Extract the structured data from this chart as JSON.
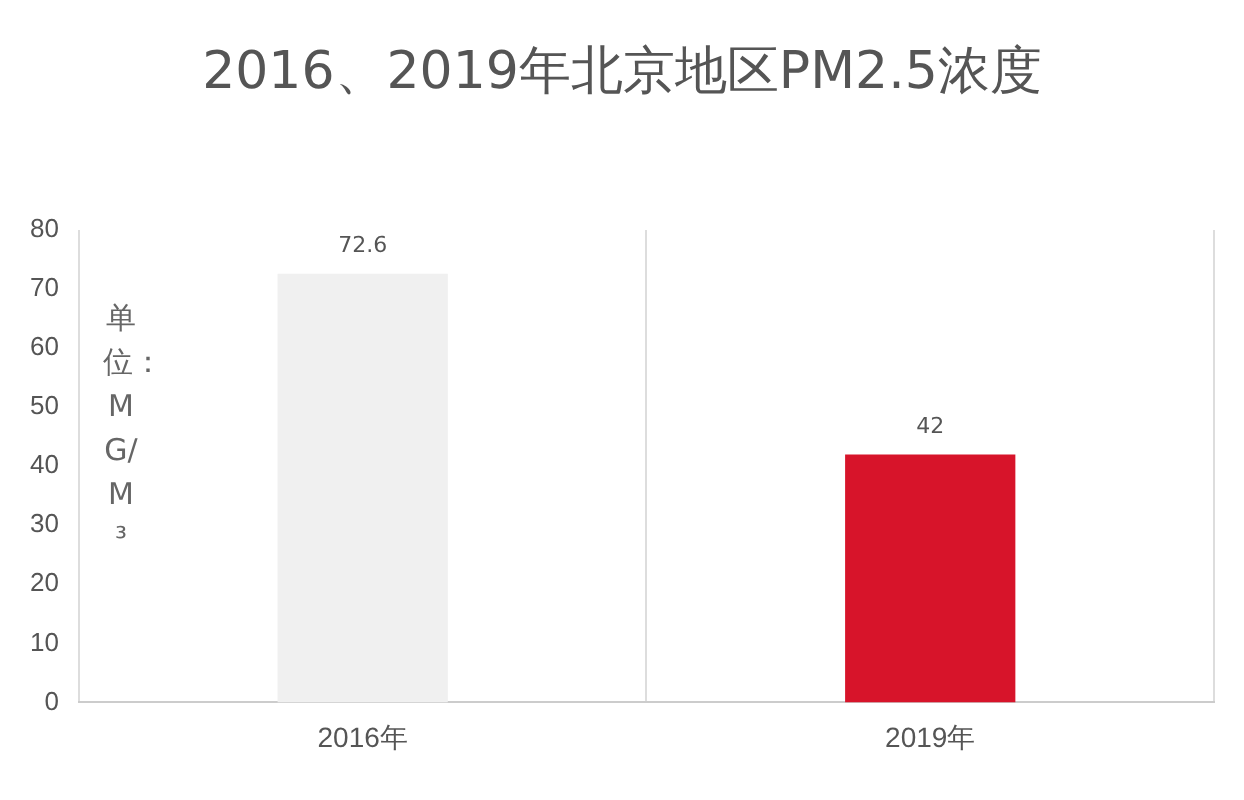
{
  "chart_data": {
    "type": "bar",
    "title": "2016、2019年北京地区PM2.5浓度",
    "ylabel": "单位：MG/M³",
    "categories": [
      "2016年",
      "2019年"
    ],
    "values": [
      72.6,
      42
    ],
    "colors": [
      "#f0f0f0",
      "#d7142a"
    ],
    "ylim": [
      0,
      80
    ],
    "yticks": [
      0,
      10,
      20,
      30,
      40,
      50,
      60,
      70,
      80
    ],
    "grid": "x",
    "data_labels": true
  }
}
